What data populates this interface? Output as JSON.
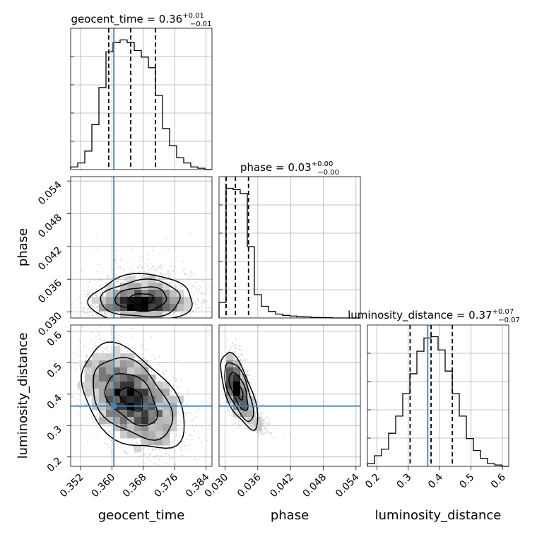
{
  "chart_data": {
    "type": "corner",
    "parameters": [
      "geocent_time",
      "phase",
      "luminosity_distance"
    ],
    "truth": {
      "geocent_time": 0.3605,
      "luminosity_distance": 0.362
    },
    "diagonal": [
      {
        "param": "geocent_time",
        "title": {
          "prefix": "geocent_time = 0.36",
          "sup": "+0.01",
          "sub": "−0.01"
        },
        "xlim": [
          0.3495,
          0.3855
        ],
        "quantiles": [
          0.3592,
          0.3648,
          0.3711
        ],
        "bin_edges": [
          0.3495,
          0.3513,
          0.3531,
          0.3549,
          0.3567,
          0.3585,
          0.3603,
          0.3621,
          0.3639,
          0.3657,
          0.3675,
          0.3693,
          0.3711,
          0.3729,
          0.3747,
          0.3765,
          0.3783,
          0.3801,
          0.3819,
          0.3837,
          0.3855
        ],
        "counts": [
          2,
          5,
          14,
          34,
          62,
          89,
          96,
          98,
          96,
          90,
          85,
          77,
          56,
          31,
          18,
          9,
          5,
          2,
          1,
          0
        ]
      },
      {
        "param": "phase",
        "title": {
          "prefix": "phase = 0.03",
          "sup": "+0.00",
          "sub": "−0.00"
        },
        "xlim": [
          0.0289,
          0.0548
        ],
        "quantiles": [
          0.0302,
          0.0319,
          0.0343
        ],
        "bin_edges": [
          0.0289,
          0.03019,
          0.03149,
          0.03278,
          0.03408,
          0.03537,
          0.03667,
          0.03796,
          0.03926,
          0.04055,
          0.04185,
          0.04314,
          0.04444,
          0.04573,
          0.04703,
          0.04832,
          0.04962,
          0.05091,
          0.05221,
          0.0535,
          0.0548
        ],
        "counts": [
          12,
          100,
          99,
          96,
          55,
          18,
          9,
          5,
          3,
          2,
          1.5,
          1,
          0.8,
          0.4,
          0.3,
          0.2,
          0,
          0,
          0,
          0
        ]
      },
      {
        "param": "luminosity_distance",
        "title": {
          "prefix": "luminosity_distance = 0.37",
          "sup": "+0.07",
          "sub": "−0.07"
        },
        "xlim": [
          0.17,
          0.62
        ],
        "quantiles": [
          0.3059,
          0.3726,
          0.4404
        ],
        "bin_edges": [
          0.17,
          0.1925,
          0.215,
          0.2375,
          0.26,
          0.2825,
          0.305,
          0.3275,
          0.35,
          0.3725,
          0.395,
          0.4175,
          0.44,
          0.4625,
          0.485,
          0.5075,
          0.53,
          0.5525,
          0.575,
          0.5975,
          0.62
        ],
        "counts": [
          2,
          8,
          13,
          25,
          38,
          55,
          70,
          87,
          97,
          98,
          88,
          72,
          55,
          38,
          21,
          12,
          6,
          2,
          1,
          0
        ]
      }
    ],
    "pairs": [
      {
        "x": "geocent_time",
        "y": "phase",
        "xlim": [
          0.3495,
          0.3855
        ],
        "ylim": [
          0.0289,
          0.0548
        ]
      },
      {
        "x": "geocent_time",
        "y": "luminosity_distance",
        "xlim": [
          0.3495,
          0.3855
        ],
        "ylim": [
          0.17,
          0.62
        ]
      },
      {
        "x": "phase",
        "y": "luminosity_distance",
        "xlim": [
          0.0289,
          0.0548
        ],
        "ylim": [
          0.17,
          0.62
        ]
      }
    ],
    "ticks": {
      "geocent_time": [
        0.352,
        0.36,
        0.368,
        0.376,
        0.384
      ],
      "phase": [
        0.03,
        0.036,
        0.042,
        0.048,
        0.054
      ],
      "luminosity_distance": [
        0.2,
        0.3,
        0.4,
        0.5,
        0.6
      ]
    },
    "tick_labels": {
      "geocent_time": [
        "0.352",
        "0.360",
        "0.368",
        "0.376",
        "0.384"
      ],
      "phase": [
        "0.030",
        "0.036",
        "0.042",
        "0.048",
        "0.054"
      ],
      "luminosity_distance_x": [
        "0.2",
        "0.3",
        "0.4",
        "0.5",
        "0.6"
      ],
      "luminosity_distance_y": [
        "0.2",
        "0.3",
        "0.4",
        "0.5",
        "0.6"
      ]
    },
    "axis_labels": {
      "x": [
        "geocent_time",
        "phase",
        "luminosity_distance"
      ],
      "y": [
        "phase",
        "luminosity_distance"
      ]
    },
    "colors": {
      "truth": "#4682b4",
      "hist": "#000000",
      "quantile": "#000000",
      "scatter": "#7f7f7f"
    },
    "grid": true
  }
}
